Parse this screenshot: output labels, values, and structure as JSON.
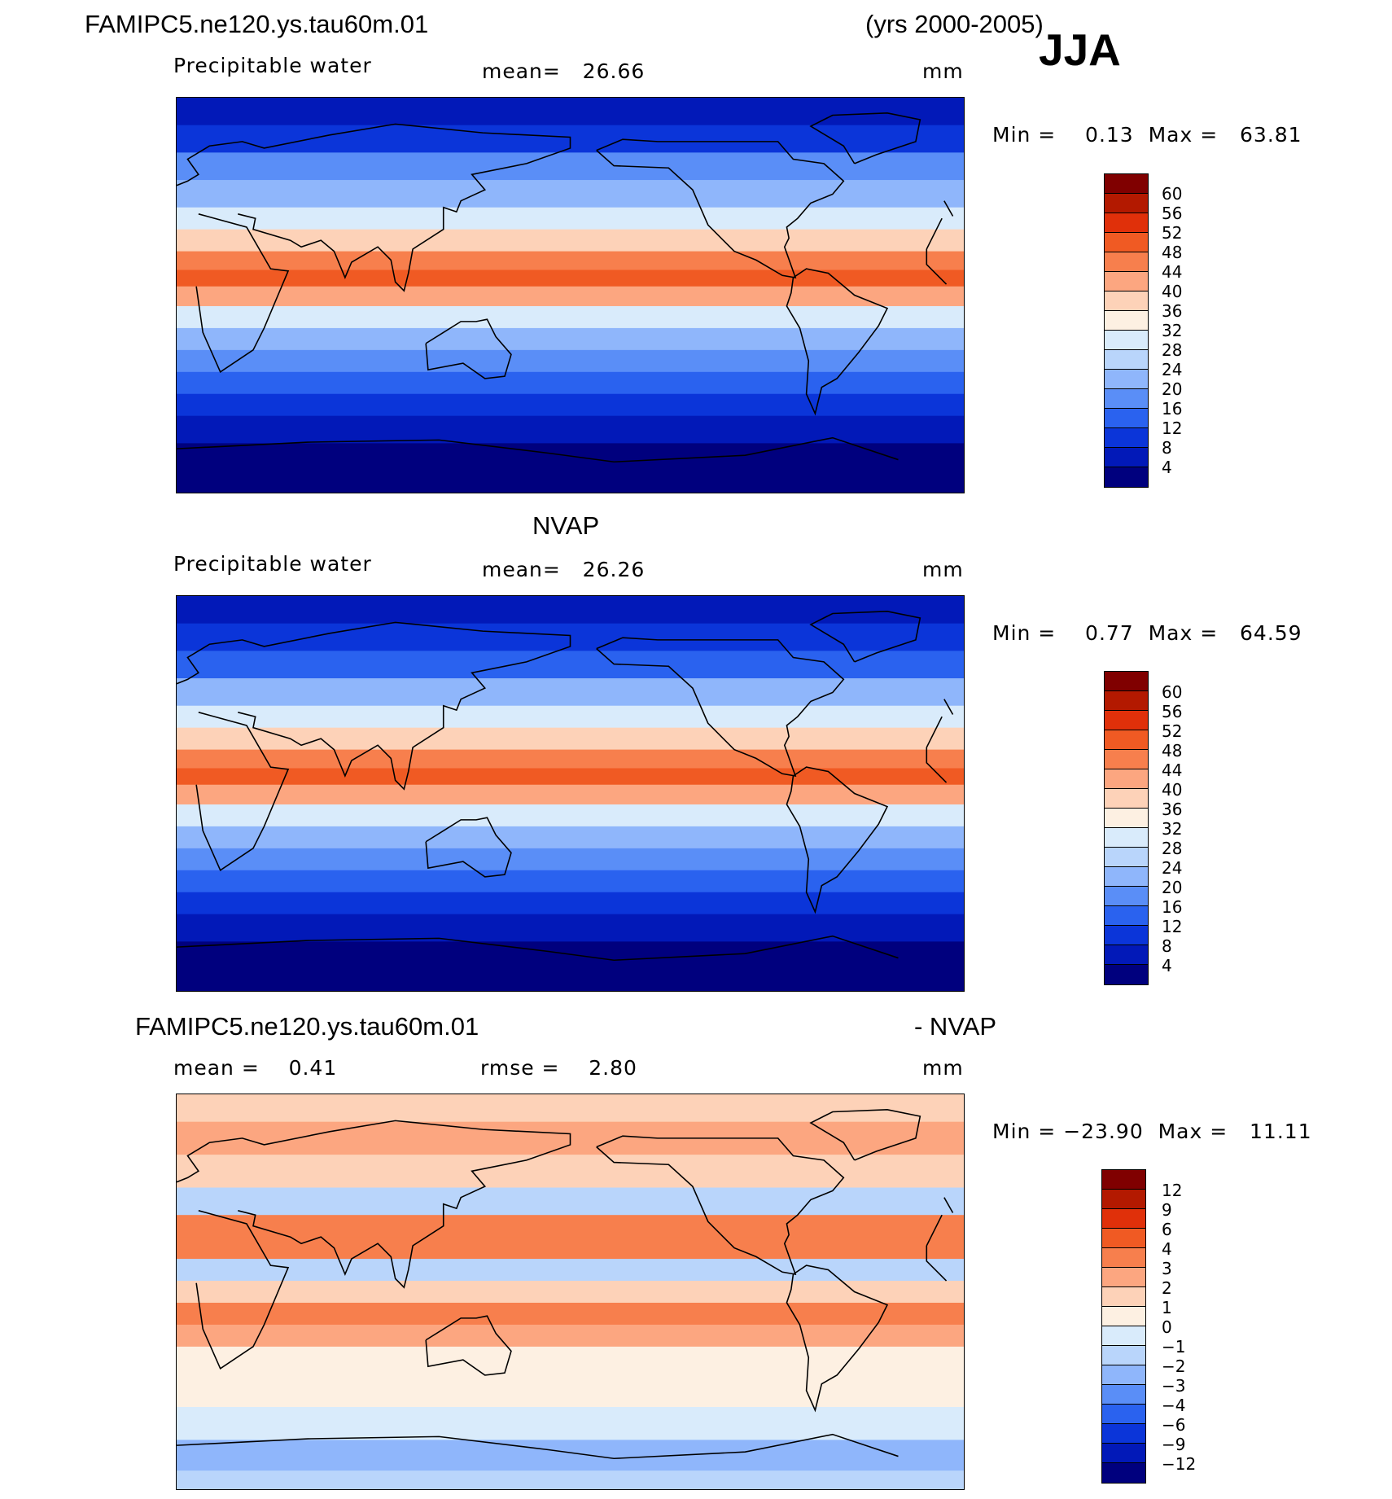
{
  "header": {
    "case_name": "FAMIPC5.ne120.ys.tau60m.01",
    "years": "(yrs 2000-2005)",
    "season": "JJA"
  },
  "panels": [
    {
      "id": "model",
      "title": "",
      "variable": "Precipitable water",
      "mean_label": "mean=   26.66",
      "units": "mm",
      "minmax": "Min =    0.13  Max =   63.81",
      "ticks": [
        "60",
        "56",
        "52",
        "48",
        "44",
        "40",
        "36",
        "32",
        "28",
        "24",
        "20",
        "16",
        "12",
        "8",
        "4"
      ]
    },
    {
      "id": "obs",
      "title": "NVAP",
      "variable": "Precipitable water",
      "mean_label": "mean=   26.26",
      "units": "mm",
      "minmax": "Min =    0.77  Max =   64.59",
      "ticks": [
        "60",
        "56",
        "52",
        "48",
        "44",
        "40",
        "36",
        "32",
        "28",
        "24",
        "20",
        "16",
        "12",
        "8",
        "4"
      ]
    },
    {
      "id": "diff",
      "title_left": "FAMIPC5.ne120.ys.tau60m.01",
      "title_right": "- NVAP",
      "mean_label": "mean =    0.41",
      "rmse_label": "rmse =    2.80",
      "units": "mm",
      "minmax": "Min = −23.90  Max =   11.11",
      "ticks": [
        "12",
        "9",
        "6",
        "4",
        "3",
        "2",
        "1",
        "0",
        "−1",
        "−2",
        "−3",
        "−4",
        "−6",
        "−9",
        "−12"
      ]
    }
  ],
  "colors": {
    "abs_scale": [
      "#800000",
      "#b31900",
      "#e0300a",
      "#f05a23",
      "#f77f4d",
      "#fca680",
      "#fdd2b8",
      "#fdf0e2",
      "#d9ebfb",
      "#b9d5fb",
      "#8fb6fb",
      "#5a8ef7",
      "#2a62ef",
      "#0b35d9",
      "#0219b8",
      "#00007e"
    ],
    "diff_scale": [
      "#800000",
      "#b31900",
      "#e0300a",
      "#f05a23",
      "#f77f4d",
      "#fca680",
      "#fdd2b8",
      "#fdf0e2",
      "#d9ebfb",
      "#b9d5fb",
      "#8fb6fb",
      "#5a8ef7",
      "#2a62ef",
      "#0b35d9",
      "#0219b8",
      "#00007e"
    ]
  },
  "chart_data": [
    {
      "type": "heatmap",
      "title": "Precipitable water",
      "units": "mm",
      "mean": 26.66,
      "min": 0.13,
      "max": 63.81,
      "contour_levels": [
        4,
        8,
        12,
        16,
        20,
        24,
        28,
        32,
        36,
        40,
        44,
        48,
        52,
        56,
        60
      ],
      "zonal_bands": [
        {
          "lat": 85,
          "value": 6
        },
        {
          "lat": 70,
          "value": 10
        },
        {
          "lat": 60,
          "value": 16
        },
        {
          "lat": 45,
          "value": 22
        },
        {
          "lat": 35,
          "value": 30
        },
        {
          "lat": 25,
          "value": 38
        },
        {
          "lat": 15,
          "value": 46
        },
        {
          "lat": 8,
          "value": 48
        },
        {
          "lat": 0,
          "value": 40
        },
        {
          "lat": -10,
          "value": 30
        },
        {
          "lat": -20,
          "value": 22
        },
        {
          "lat": -30,
          "value": 16
        },
        {
          "lat": -40,
          "value": 12
        },
        {
          "lat": -50,
          "value": 8
        },
        {
          "lat": -60,
          "value": 5
        },
        {
          "lat": -75,
          "value": 2
        },
        {
          "lat": -88,
          "value": 1
        }
      ]
    },
    {
      "type": "heatmap",
      "title": "NVAP",
      "units": "mm",
      "mean": 26.26,
      "min": 0.77,
      "max": 64.59,
      "contour_levels": [
        4,
        8,
        12,
        16,
        20,
        24,
        28,
        32,
        36,
        40,
        44,
        48,
        52,
        56,
        60
      ],
      "zonal_bands": [
        {
          "lat": 85,
          "value": 6
        },
        {
          "lat": 70,
          "value": 10
        },
        {
          "lat": 60,
          "value": 15
        },
        {
          "lat": 45,
          "value": 22
        },
        {
          "lat": 35,
          "value": 30
        },
        {
          "lat": 25,
          "value": 38
        },
        {
          "lat": 15,
          "value": 46
        },
        {
          "lat": 8,
          "value": 50
        },
        {
          "lat": 0,
          "value": 42
        },
        {
          "lat": -10,
          "value": 30
        },
        {
          "lat": -20,
          "value": 22
        },
        {
          "lat": -30,
          "value": 16
        },
        {
          "lat": -40,
          "value": 12
        },
        {
          "lat": -50,
          "value": 8
        },
        {
          "lat": -60,
          "value": 5
        },
        {
          "lat": -75,
          "value": 2
        },
        {
          "lat": -88,
          "value": 1
        }
      ]
    },
    {
      "type": "heatmap",
      "title": "FAMIPC5.ne120.ys.tau60m.01 - NVAP",
      "units": "mm",
      "mean": 0.41,
      "rmse": 2.8,
      "min": -23.9,
      "max": 11.11,
      "contour_levels": [
        -12,
        -9,
        -6,
        -4,
        -3,
        -2,
        -1,
        0,
        1,
        2,
        3,
        4,
        6,
        9,
        12
      ],
      "zonal_bands": [
        {
          "lat": 85,
          "value": 1.5
        },
        {
          "lat": 70,
          "value": 2.5
        },
        {
          "lat": 55,
          "value": 1.5
        },
        {
          "lat": 40,
          "value": -2
        },
        {
          "lat": 30,
          "value": 3
        },
        {
          "lat": 20,
          "value": 3.5
        },
        {
          "lat": 10,
          "value": -2
        },
        {
          "lat": 0,
          "value": 1.5
        },
        {
          "lat": -10,
          "value": 3
        },
        {
          "lat": -20,
          "value": 2
        },
        {
          "lat": -30,
          "value": 0.5
        },
        {
          "lat": -45,
          "value": 0.5
        },
        {
          "lat": -60,
          "value": -0.5
        },
        {
          "lat": -75,
          "value": -3
        },
        {
          "lat": -88,
          "value": -1.5
        }
      ]
    }
  ]
}
